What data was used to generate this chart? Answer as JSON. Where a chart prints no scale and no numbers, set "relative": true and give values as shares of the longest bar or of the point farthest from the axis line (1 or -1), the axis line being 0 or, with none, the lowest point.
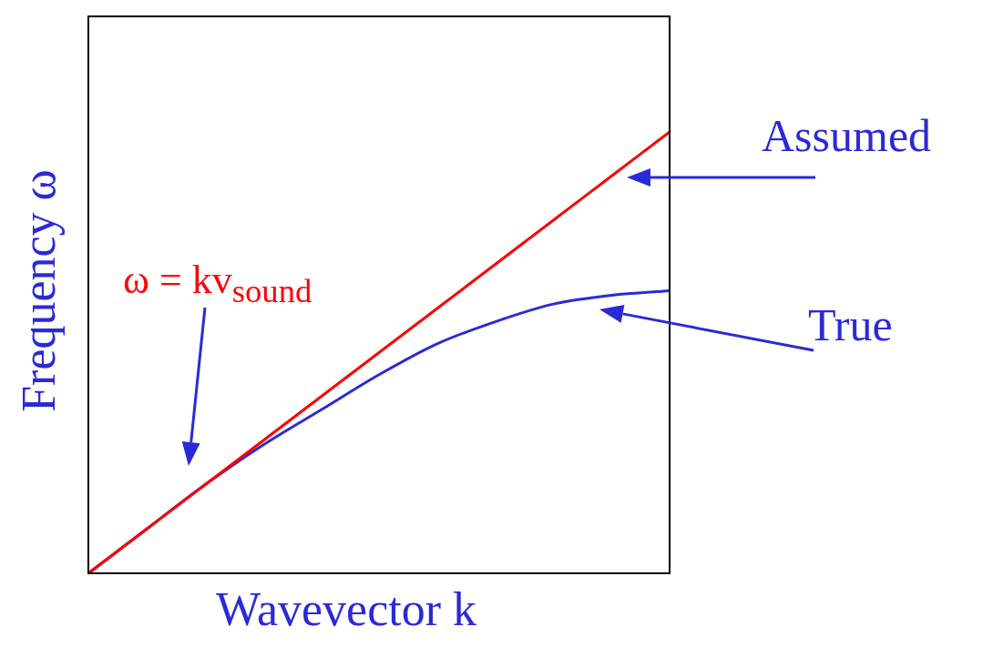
{
  "chart_data": {
    "type": "line",
    "relative": true,
    "categories": [
      null,
      null,
      null,
      null,
      null,
      null,
      null,
      null,
      null,
      null,
      null
    ],
    "xlabel": "Wavevector k",
    "ylabel": "Frequency ω",
    "legend": false,
    "marker": "none",
    "line_style": "solid",
    "series": [
      {
        "color": "#ff0000",
        "values": [
          0,
          0.1,
          0.2,
          0.3,
          0.4,
          0.5,
          0.6,
          0.7,
          0.8,
          0.9,
          1
        ]
      },
      {
        "color": "#2a2ad8",
        "values": [
          0,
          0.1,
          0.2,
          0.29,
          0.37,
          0.45,
          0.52,
          0.57,
          0.61,
          0.63,
          0.64
        ]
      }
    ],
    "annotations": [
      "ω = kv$_{sound}$",
      "Assumed",
      "True"
    ]
  }
}
